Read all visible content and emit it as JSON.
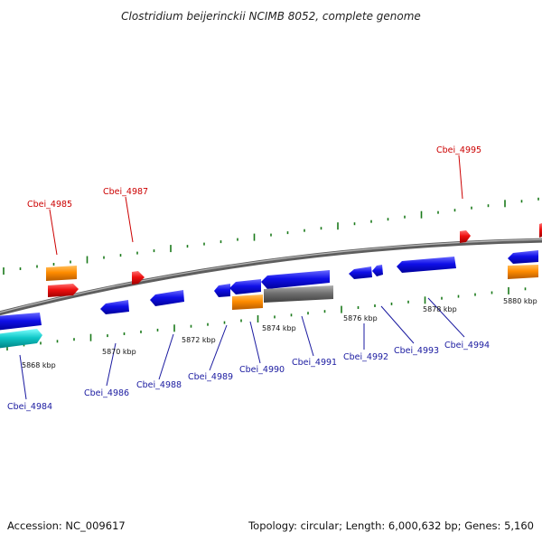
{
  "title": "Clostridium beijerinckii NCIMB 8052, complete genome",
  "footer": {
    "accession": "Accession: NC_009617",
    "summary": "Topology: circular; Length: 6,000,632 bp; Genes: 5,160"
  },
  "colors": {
    "blue_gene": "#1010e8",
    "red_gene": "#ee1010",
    "orange_gene": "#ff8c00",
    "cyan_gene": "#10c8c8",
    "gray_gene": "#707070",
    "backbone": "#7a7a7a",
    "tick": "#1a7a1a",
    "red_label": "#cc0000",
    "blue_label": "#1a1aa0"
  },
  "scale": {
    "unit": "kbp",
    "labels": [
      "5868 kbp",
      "5870 kbp",
      "5872 kbp",
      "5874 kbp",
      "5876 kbp",
      "5878 kbp",
      "5880 kbp"
    ]
  },
  "gene_labels": [
    {
      "name": "Cbei_4984",
      "color": "blue"
    },
    {
      "name": "Cbei_4985",
      "color": "red"
    },
    {
      "name": "Cbei_4986",
      "color": "blue"
    },
    {
      "name": "Cbei_4987",
      "color": "red"
    },
    {
      "name": "Cbei_4988",
      "color": "blue"
    },
    {
      "name": "Cbei_4989",
      "color": "blue"
    },
    {
      "name": "Cbei_4990",
      "color": "blue"
    },
    {
      "name": "Cbei_4991",
      "color": "blue"
    },
    {
      "name": "Cbei_4992",
      "color": "blue"
    },
    {
      "name": "Cbei_4993",
      "color": "blue"
    },
    {
      "name": "Cbei_4994",
      "color": "blue"
    },
    {
      "name": "Cbei_4995",
      "color": "red"
    }
  ]
}
